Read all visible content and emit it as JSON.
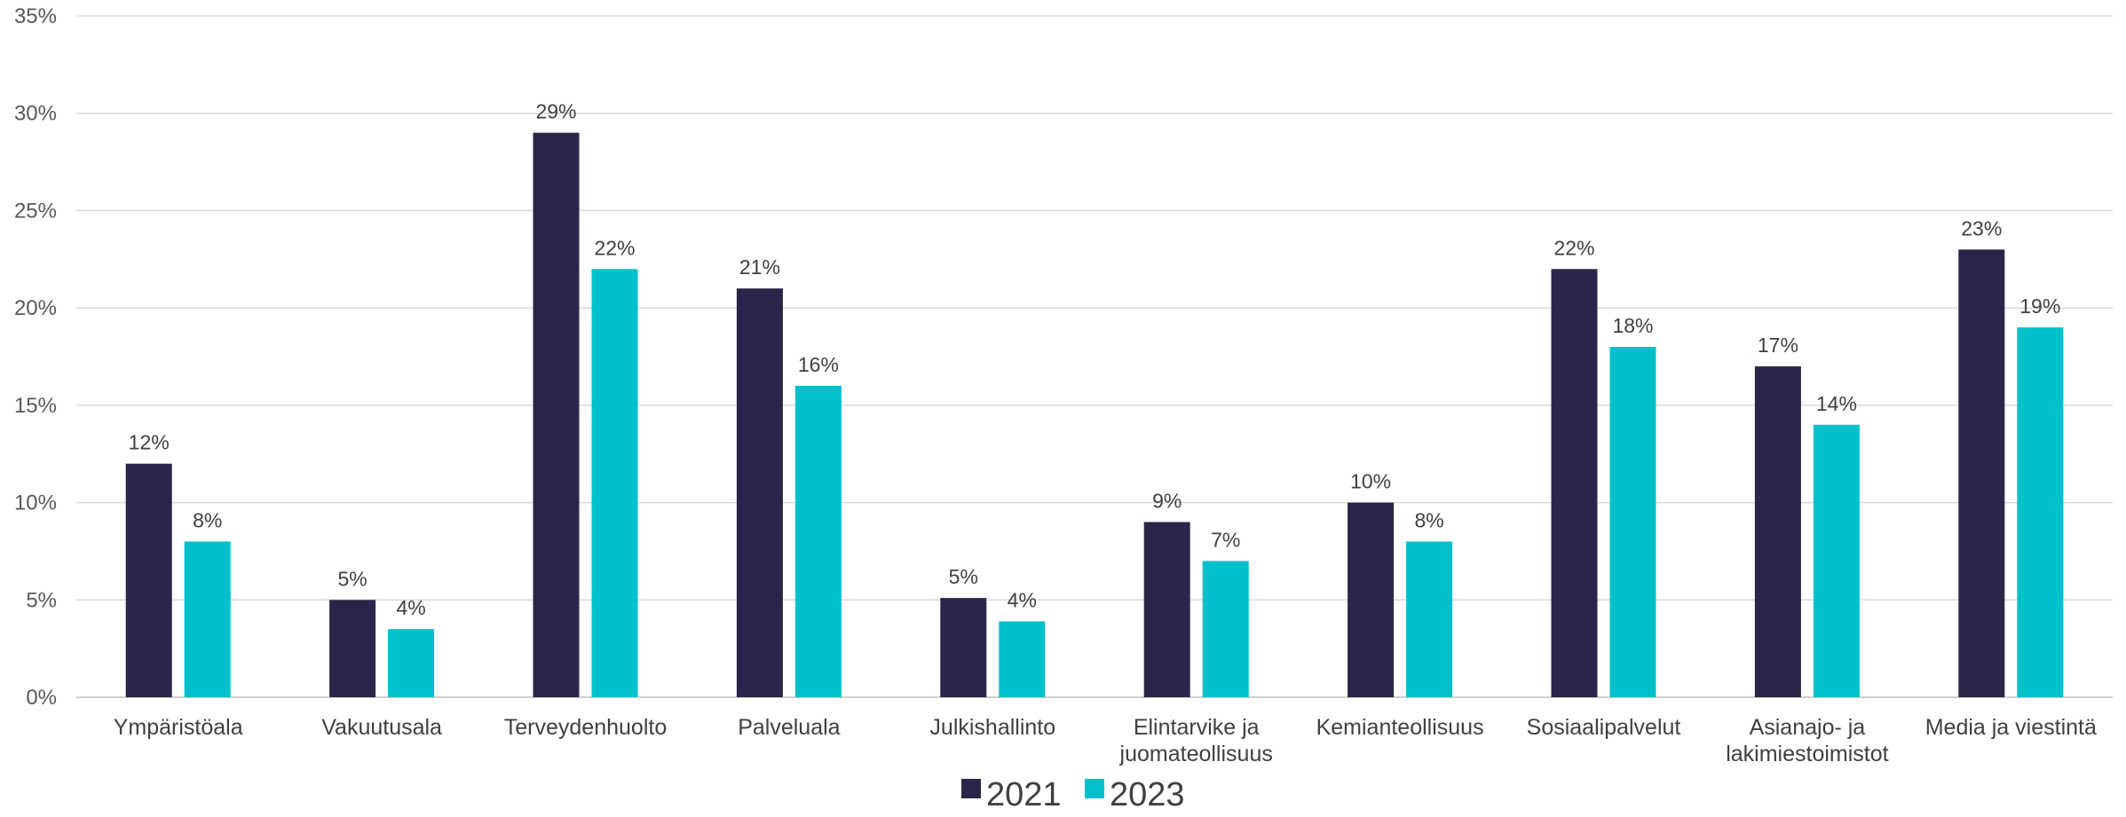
{
  "chart_data": {
    "type": "bar",
    "categories": [
      [
        "Ympäristöala"
      ],
      [
        "Vakuutusala"
      ],
      [
        "Terveydenhuolto"
      ],
      [
        "Palveluala"
      ],
      [
        "Julkishallinto"
      ],
      [
        "Elintarvike ja",
        "juomateollisuus"
      ],
      [
        "Kemianteollisuus"
      ],
      [
        "Sosiaalipalvelut"
      ],
      [
        "Asianajo- ja",
        "lakimiestoimistot"
      ],
      [
        "Media ja viestintä"
      ]
    ],
    "series": [
      {
        "name": "2021",
        "color": "#2b254c",
        "values": [
          12,
          5,
          29,
          21,
          5.1,
          9,
          10,
          22,
          17,
          23
        ],
        "labels": [
          "12%",
          "5%",
          "29%",
          "21%",
          "5%",
          "9%",
          "10%",
          "22%",
          "17%",
          "23%"
        ]
      },
      {
        "name": "2023",
        "color": "#00c1cb",
        "values": [
          8,
          3.5,
          22,
          16,
          3.9,
          7,
          8,
          18,
          14,
          19
        ],
        "labels": [
          "8%",
          "4%",
          "22%",
          "16%",
          "4%",
          "7%",
          "8%",
          "18%",
          "14%",
          "19%"
        ]
      }
    ],
    "yticks": [
      {
        "value": 0,
        "label": "0%"
      },
      {
        "value": 5,
        "label": "5%"
      },
      {
        "value": 10,
        "label": "10%"
      },
      {
        "value": 15,
        "label": "15%"
      },
      {
        "value": 20,
        "label": "20%"
      },
      {
        "value": 25,
        "label": "25%"
      },
      {
        "value": 30,
        "label": "30%"
      },
      {
        "value": 35,
        "label": "35%"
      }
    ],
    "ylim": [
      0,
      35
    ],
    "title": "",
    "xlabel": "",
    "ylabel": "",
    "grid": "horizontal",
    "legend_position": "bottom-center"
  }
}
